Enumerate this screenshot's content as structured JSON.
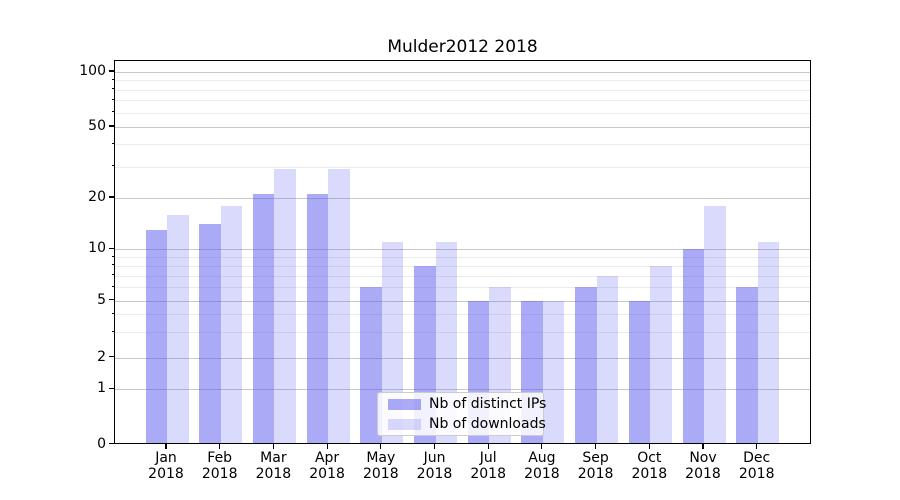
{
  "figure": {
    "background": "#ffffff",
    "title": "Mulder2012 2018"
  },
  "chart_data": {
    "type": "bar",
    "title": "Mulder2012 2018",
    "x": {
      "months": [
        "Jan",
        "Feb",
        "Mar",
        "Apr",
        "May",
        "Jun",
        "Jul",
        "Aug",
        "Sep",
        "Oct",
        "Nov",
        "Dec"
      ],
      "year": "2018"
    },
    "categories": [
      "Jan 2018",
      "Feb 2018",
      "Mar 2018",
      "Apr 2018",
      "May 2018",
      "Jun 2018",
      "Jul 2018",
      "Aug 2018",
      "Sep 2018",
      "Oct 2018",
      "Nov 2018",
      "Dec 2018"
    ],
    "series": [
      {
        "name": "Nb of distinct IPs",
        "key": "distinct-ips",
        "color": "rgba(85,85,240,0.50)",
        "solid_color": "#A9A9F9",
        "values": [
          13,
          14,
          21,
          21,
          6,
          8,
          5,
          5,
          6,
          5,
          10,
          6
        ]
      },
      {
        "name": "Nb of downloads",
        "key": "downloads",
        "color": "rgba(85,85,240,0.22)",
        "solid_color": "#D8D8F9",
        "values": [
          16,
          18,
          29,
          29,
          11,
          11,
          6,
          5,
          7,
          8,
          18,
          11
        ]
      }
    ],
    "y_axis": {
      "scale": "symlog",
      "major_ticks": [
        100,
        50,
        20,
        10,
        5,
        2,
        1,
        0
      ],
      "minor_ticks": [
        90,
        80,
        70,
        60,
        40,
        30,
        9,
        8,
        7,
        6,
        4,
        3
      ],
      "range": [
        0,
        115
      ],
      "grid": "both"
    },
    "legend": {
      "position": "lower-center",
      "entries": [
        "Nb of distinct IPs",
        "Nb of downloads"
      ]
    },
    "grid_colors": {
      "major": "#c8c8c8",
      "minor": "#ebebeb"
    }
  }
}
